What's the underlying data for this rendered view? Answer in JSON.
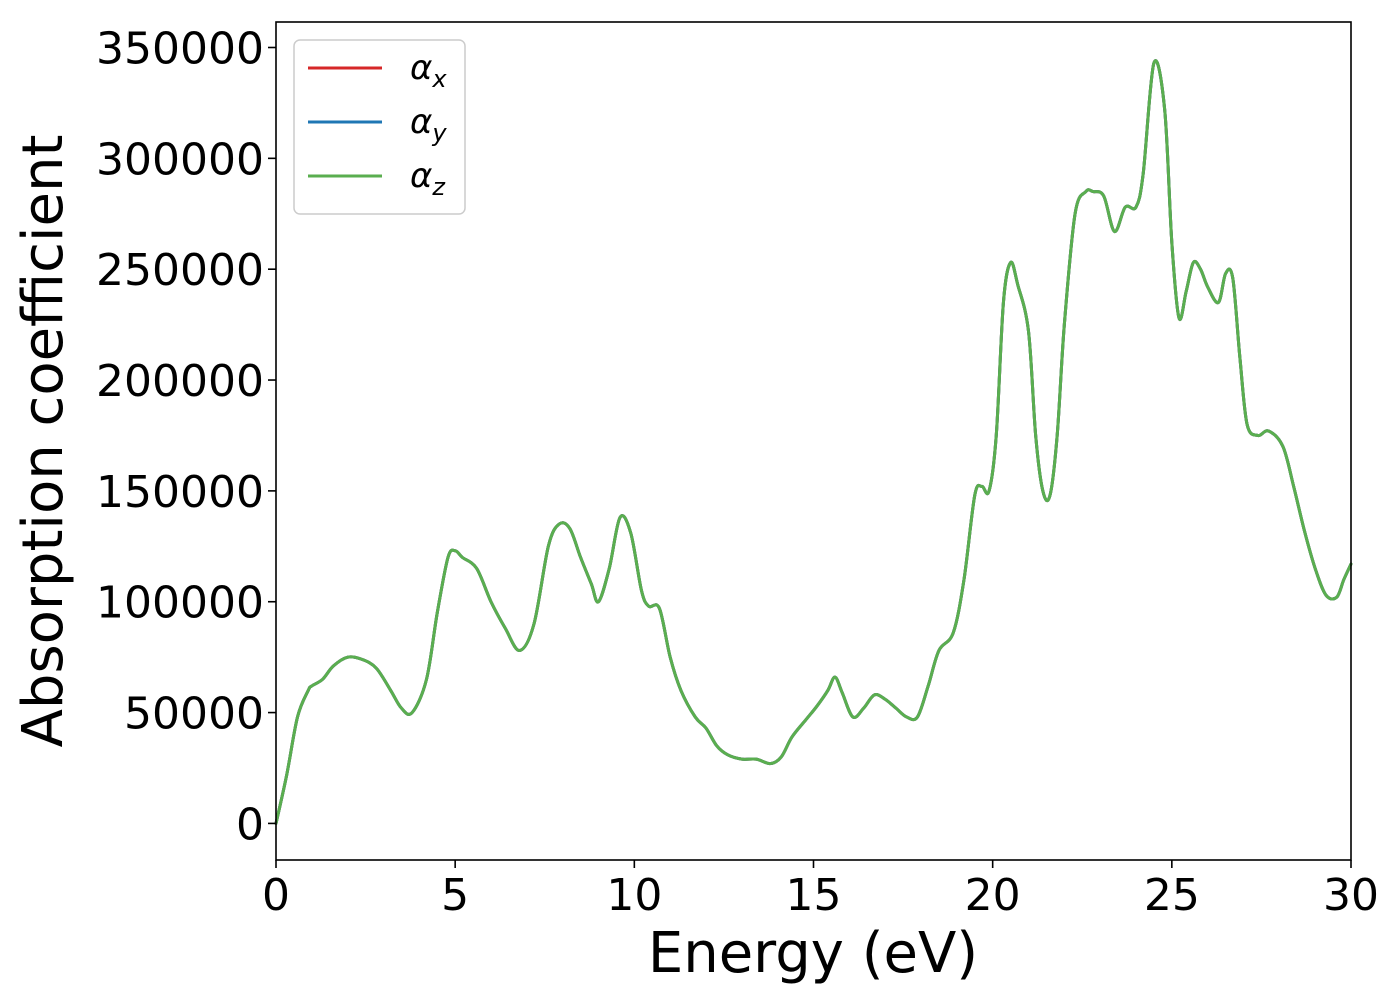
{
  "chart_data": {
    "type": "line",
    "xlabel": "Energy (eV)",
    "ylabel": "Absorption coefficient",
    "xlim": [
      0,
      30
    ],
    "ylim": [
      -16500,
      361500
    ],
    "xticks": [
      0,
      5,
      10,
      15,
      20,
      25,
      30
    ],
    "xtick_labels": [
      "0",
      "5",
      "10",
      "15",
      "20",
      "25",
      "30"
    ],
    "yticks": [
      0,
      50000,
      100000,
      150000,
      200000,
      250000,
      300000,
      350000
    ],
    "ytick_labels": [
      "0",
      "50000",
      "100000",
      "150000",
      "200000",
      "250000",
      "300000",
      "350000"
    ],
    "grid": false,
    "legend_position": "top-left",
    "x": [
      0,
      0.3,
      0.6,
      0.9,
      1.0,
      1.3,
      1.6,
      2.0,
      2.4,
      2.8,
      3.2,
      3.5,
      3.8,
      4.2,
      4.5,
      4.8,
      5.0,
      5.2,
      5.6,
      6.0,
      6.4,
      6.8,
      7.2,
      7.6,
      7.9,
      8.2,
      8.5,
      8.8,
      9.0,
      9.3,
      9.6,
      9.9,
      10.2,
      10.4,
      10.7,
      11.0,
      11.3,
      11.7,
      12.0,
      12.3,
      12.6,
      13.0,
      13.4,
      13.8,
      14.1,
      14.4,
      14.8,
      15.1,
      15.4,
      15.6,
      15.8,
      16.1,
      16.4,
      16.7,
      17.0,
      17.3,
      17.6,
      17.9,
      18.2,
      18.5,
      18.9,
      19.2,
      19.5,
      19.7,
      19.9,
      20.1,
      20.3,
      20.5,
      20.7,
      21.0,
      21.2,
      21.4,
      21.6,
      21.8,
      22.0,
      22.3,
      22.6,
      22.8,
      23.1,
      23.4,
      23.7,
      24.0,
      24.2,
      24.5,
      24.8,
      25.0,
      25.2,
      25.4,
      25.6,
      25.8,
      26.0,
      26.3,
      26.5,
      26.7,
      26.9,
      27.1,
      27.4,
      27.7,
      28.1,
      28.4,
      28.7,
      29.0,
      29.3,
      29.6,
      29.8,
      30.0
    ],
    "series": [
      {
        "name": "α_x",
        "color": "#d62728",
        "values": [
          0,
          22000,
          48000,
          60000,
          62000,
          65000,
          71000,
          75000,
          74000,
          70000,
          60000,
          52000,
          50000,
          65000,
          95000,
          120000,
          123000,
          120000,
          115000,
          100000,
          88000,
          78000,
          90000,
          125000,
          135000,
          133000,
          120000,
          108000,
          100000,
          115000,
          138000,
          131000,
          105000,
          98000,
          97000,
          75000,
          60000,
          48000,
          43000,
          35000,
          31000,
          29000,
          29000,
          27000,
          30000,
          39000,
          47000,
          53000,
          60000,
          66000,
          59000,
          48000,
          52000,
          58000,
          56000,
          52000,
          48000,
          48000,
          62000,
          78000,
          86000,
          110000,
          148000,
          152000,
          150000,
          175000,
          235000,
          253000,
          243000,
          222000,
          175000,
          150000,
          148000,
          175000,
          225000,
          275000,
          285000,
          285000,
          283000,
          267000,
          278000,
          278000,
          293000,
          343000,
          322000,
          262000,
          228000,
          240000,
          253000,
          250000,
          242000,
          235000,
          248000,
          246000,
          210000,
          180000,
          175000,
          177000,
          170000,
          152000,
          132000,
          115000,
          103000,
          102000,
          110000,
          117000
        ]
      },
      {
        "name": "α_y",
        "color": "#1f77b4",
        "values": [
          0,
          22000,
          48000,
          60000,
          62000,
          65000,
          71000,
          75000,
          74000,
          70000,
          60000,
          52000,
          50000,
          65000,
          95000,
          120000,
          123000,
          120000,
          115000,
          100000,
          88000,
          78000,
          90000,
          125000,
          135000,
          133000,
          120000,
          108000,
          100000,
          115000,
          138000,
          131000,
          105000,
          98000,
          97000,
          75000,
          60000,
          48000,
          43000,
          35000,
          31000,
          29000,
          29000,
          27000,
          30000,
          39000,
          47000,
          53000,
          60000,
          66000,
          59000,
          48000,
          52000,
          58000,
          56000,
          52000,
          48000,
          48000,
          62000,
          78000,
          86000,
          110000,
          148000,
          152000,
          150000,
          175000,
          235000,
          253000,
          243000,
          222000,
          175000,
          150000,
          148000,
          175000,
          225000,
          275000,
          285000,
          285000,
          283000,
          267000,
          278000,
          278000,
          293000,
          343000,
          322000,
          262000,
          228000,
          240000,
          253000,
          250000,
          242000,
          235000,
          248000,
          246000,
          210000,
          180000,
          175000,
          177000,
          170000,
          152000,
          132000,
          115000,
          103000,
          102000,
          110000,
          117000
        ]
      },
      {
        "name": "α_z",
        "color": "#5aae4f",
        "values": [
          0,
          22000,
          48000,
          60000,
          62000,
          65000,
          71000,
          75000,
          74000,
          70000,
          60000,
          52000,
          50000,
          65000,
          95000,
          120000,
          123000,
          120000,
          115000,
          100000,
          88000,
          78000,
          90000,
          125000,
          135000,
          133000,
          120000,
          108000,
          100000,
          115000,
          138000,
          131000,
          105000,
          98000,
          97000,
          75000,
          60000,
          48000,
          43000,
          35000,
          31000,
          29000,
          29000,
          27000,
          30000,
          39000,
          47000,
          53000,
          60000,
          66000,
          59000,
          48000,
          52000,
          58000,
          56000,
          52000,
          48000,
          48000,
          62000,
          78000,
          86000,
          110000,
          148000,
          152000,
          150000,
          175000,
          235000,
          253000,
          243000,
          222000,
          175000,
          150000,
          148000,
          175000,
          225000,
          275000,
          285000,
          285000,
          283000,
          267000,
          278000,
          278000,
          293000,
          343000,
          322000,
          262000,
          228000,
          240000,
          253000,
          250000,
          242000,
          235000,
          248000,
          246000,
          210000,
          180000,
          175000,
          177000,
          170000,
          152000,
          132000,
          115000,
          103000,
          102000,
          110000,
          117000
        ]
      }
    ],
    "legend": [
      {
        "symbol": "α",
        "subscript": "x",
        "color": "#d62728"
      },
      {
        "symbol": "α",
        "subscript": "y",
        "color": "#1f77b4"
      },
      {
        "symbol": "α",
        "subscript": "z",
        "color": "#5aae4f"
      }
    ]
  }
}
